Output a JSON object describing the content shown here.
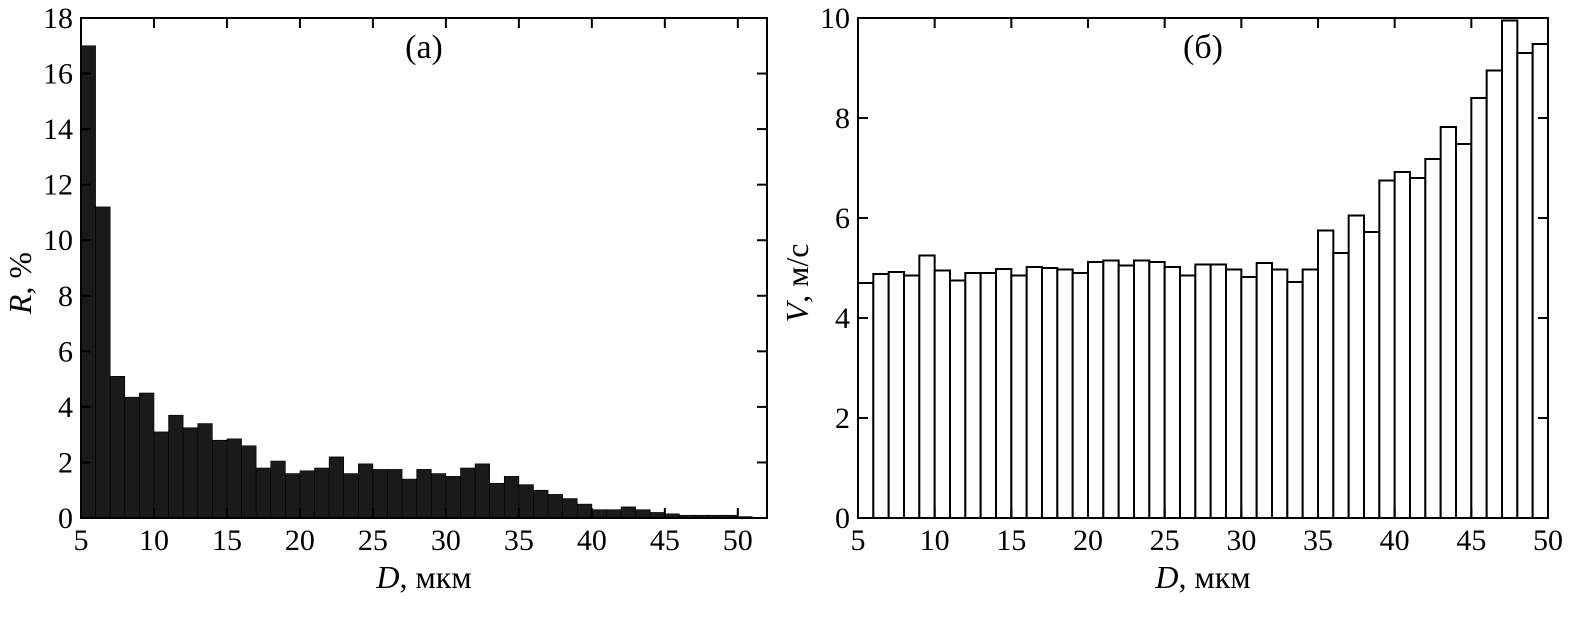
{
  "chart_data": [
    {
      "type": "bar",
      "panel_label": "(а)",
      "xlabel": {
        "symbol": "D",
        "unit": ", мкм"
      },
      "ylabel": {
        "symbol": "R",
        "unit": ", %"
      },
      "xlim": [
        5,
        52
      ],
      "ylim": [
        0,
        18
      ],
      "xticks": [
        5,
        10,
        15,
        20,
        25,
        30,
        35,
        40,
        45,
        50
      ],
      "yticks": [
        0,
        2,
        4,
        6,
        8,
        10,
        12,
        14,
        16,
        18
      ],
      "fill": "#1a1a1a",
      "bin_start": 5,
      "bin_width": 1,
      "values": [
        17.0,
        11.2,
        5.1,
        4.35,
        4.5,
        3.1,
        3.7,
        3.25,
        3.4,
        2.8,
        2.85,
        2.6,
        1.8,
        2.05,
        1.6,
        1.7,
        1.8,
        2.2,
        1.6,
        1.95,
        1.75,
        1.75,
        1.4,
        1.75,
        1.6,
        1.5,
        1.8,
        1.95,
        1.25,
        1.5,
        1.2,
        1.0,
        0.85,
        0.7,
        0.5,
        0.3,
        0.3,
        0.4,
        0.3,
        0.2,
        0.15,
        0.1,
        0.1,
        0.1,
        0.1,
        0.05
      ]
    },
    {
      "type": "bar",
      "panel_label": "(б)",
      "xlabel": {
        "symbol": "D",
        "unit": ", мкм"
      },
      "ylabel": {
        "symbol": "V",
        "unit": ", м/с"
      },
      "xlim": [
        5,
        50
      ],
      "ylim": [
        0,
        10
      ],
      "xticks": [
        5,
        10,
        15,
        20,
        25,
        30,
        35,
        40,
        45,
        50
      ],
      "yticks": [
        0,
        2,
        4,
        6,
        8,
        10
      ],
      "fill": "#ffffff",
      "bin_start": 5,
      "bin_width": 1,
      "values": [
        4.7,
        4.88,
        4.92,
        4.85,
        5.25,
        4.95,
        4.75,
        4.9,
        4.9,
        4.98,
        4.85,
        5.02,
        5.0,
        4.97,
        4.9,
        5.12,
        5.15,
        5.05,
        5.15,
        5.12,
        5.02,
        4.85,
        5.07,
        5.07,
        4.97,
        4.82,
        5.1,
        4.97,
        4.72,
        4.97,
        5.75,
        5.3,
        6.05,
        5.72,
        6.75,
        6.92,
        6.8,
        7.18,
        7.82,
        7.48,
        8.4,
        8.95,
        9.95,
        9.3,
        9.48
      ]
    }
  ]
}
